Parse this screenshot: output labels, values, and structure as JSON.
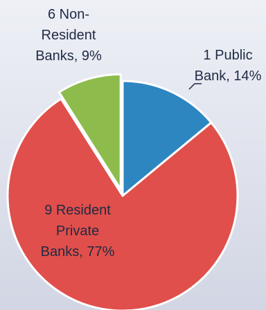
{
  "chart_data": {
    "type": "pie",
    "title": "",
    "slices": [
      {
        "label": "1 Public Bank, 14%",
        "count": 1,
        "category": "Public Bank",
        "percent": 14,
        "color": "#2e86c1"
      },
      {
        "label": "9 Resident Private Banks, 77%",
        "count": 9,
        "category": "Resident Private Banks",
        "percent": 77,
        "color": "#e04f4b"
      },
      {
        "label": "6 Non-Resident Banks, 9%",
        "count": 6,
        "category": "Non-Resident Banks",
        "percent": 9,
        "color": "#8dbc4c"
      }
    ],
    "label_lines": [
      [
        "1 Public",
        "Bank, 14%"
      ],
      [
        "9 Resident",
        "Private",
        "Banks, 77%"
      ],
      [
        "6 Non-",
        "Resident",
        "Banks, 9%"
      ]
    ],
    "exploded_slice": "Non-Resident Banks",
    "start_angle_deg": 0,
    "direction": "clockwise",
    "legend": "none"
  }
}
